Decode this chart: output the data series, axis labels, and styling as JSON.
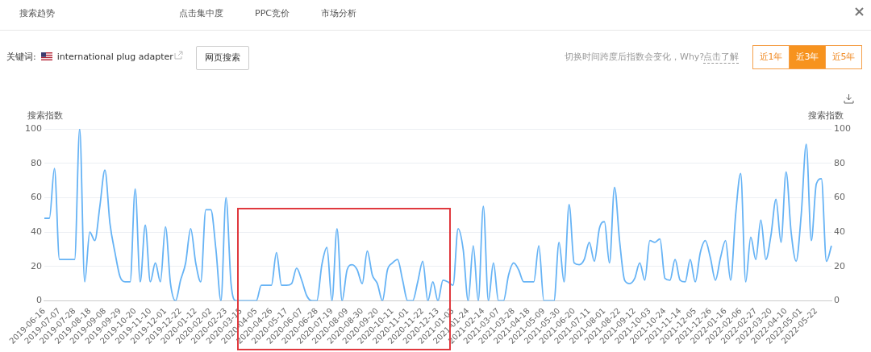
{
  "chart_data": {
    "type": "line",
    "title": "关键词: international plug adapter",
    "ylabel": "搜索指数",
    "y2label": "搜索指数",
    "annotations": [
      "搜索趋势",
      "点击集中度",
      "PPC竞价",
      "市场分析",
      "网页搜索",
      "切换时间跨度后指数会变化，Why?",
      "点击了解",
      "近1年",
      "近3年",
      "近5年"
    ],
    "categories": [
      "2019-06-16",
      null,
      null,
      "2019-07-07",
      null,
      null,
      "2019-07-28",
      null,
      null,
      "2019-08-18",
      null,
      null,
      "2019-09-08",
      null,
      null,
      "2019-09-29",
      null,
      null,
      "2019-10-20",
      null,
      null,
      "2019-11-10",
      null,
      null,
      "2019-12-01",
      null,
      null,
      "2019-12-22",
      null,
      null,
      "2020-01-12",
      null,
      null,
      "2020-02-02",
      null,
      null,
      "2020-02-23",
      null,
      null,
      "2020-03-15",
      null,
      null,
      "2020-04-05",
      null,
      null,
      "2020-04-26",
      null,
      null,
      "2020-05-17",
      null,
      null,
      "2020-06-07",
      null,
      null,
      "2020-06-28",
      null,
      null,
      "2020-07-19",
      null,
      null,
      "2020-08-09",
      null,
      null,
      "2020-08-30",
      null,
      null,
      "2020-09-20",
      null,
      null,
      "2020-10-11",
      null,
      null,
      "2020-11-01",
      null,
      null,
      "2020-11-22",
      null,
      null,
      "2020-12-13",
      null,
      null,
      "2021-01-03",
      null,
      null,
      "2021-01-24",
      null,
      null,
      "2021-02-14",
      null,
      null,
      "2021-03-07",
      null,
      null,
      "2021-03-28",
      null,
      null,
      "2021-04-18",
      null,
      null,
      "2021-05-09",
      null,
      null,
      "2021-05-30",
      null,
      null,
      "2021-06-20",
      null,
      null,
      "2021-07-11",
      null,
      null,
      "2021-08-01",
      null,
      null,
      "2021-08-22",
      null,
      null,
      "2021-09-12",
      null,
      null,
      "2021-10-03",
      null,
      null,
      "2021-10-24",
      null,
      null,
      "2021-11-14",
      null,
      null,
      "2021-12-05",
      null,
      null,
      "2021-12-26",
      null,
      null,
      "2022-01-16",
      null,
      null,
      "2022-02-06",
      null,
      null,
      "2022-02-27",
      null,
      null,
      "2022-03-20",
      null,
      null,
      "2022-04-10",
      null,
      null,
      "2022-05-01",
      null,
      null,
      "2022-05-22",
      null,
      null,
      null
    ],
    "series": [
      {
        "color": "#66b3f5",
        "values": [
          48,
          48,
          77,
          24,
          24,
          24,
          24,
          100,
          11,
          40,
          35,
          55,
          76,
          45,
          28,
          14,
          11,
          11,
          65,
          11,
          44,
          11,
          22,
          11,
          43,
          10,
          0,
          12,
          22,
          42,
          22,
          11,
          53,
          53,
          30,
          0,
          60,
          10,
          0,
          0,
          0,
          0,
          0,
          9,
          9,
          9,
          28,
          9,
          9,
          10,
          19,
          12,
          3,
          0,
          0,
          21,
          31,
          0,
          42,
          0,
          18,
          21,
          18,
          10,
          29,
          15,
          10,
          0,
          18,
          22,
          24,
          12,
          0,
          0,
          11,
          23,
          0,
          11,
          0,
          12,
          11,
          9,
          42,
          30,
          0,
          32,
          0,
          55,
          0,
          22,
          0,
          0,
          15,
          22,
          18,
          11,
          11,
          11,
          32,
          0,
          0,
          0,
          34,
          11,
          56,
          22,
          21,
          24,
          34,
          23,
          42,
          46,
          22,
          66,
          35,
          12,
          10,
          13,
          22,
          12,
          35,
          34,
          36,
          13,
          12,
          24,
          12,
          11,
          24,
          11,
          28,
          35,
          25,
          12,
          25,
          35,
          12,
          50,
          74,
          11,
          37,
          24,
          47,
          24,
          38,
          59,
          34,
          75,
          40,
          23,
          50,
          91,
          35,
          68,
          71,
          23,
          32
        ]
      }
    ],
    "ylim": [
      0,
      100
    ],
    "yticks": [
      0,
      20,
      40,
      60,
      80,
      100
    ],
    "y2lim": [
      0,
      100
    ],
    "y2ticks": [
      0,
      20,
      40,
      60,
      80,
      100
    ],
    "grid": "y",
    "legend": false,
    "marker": "none",
    "line_style": "solid"
  }
}
